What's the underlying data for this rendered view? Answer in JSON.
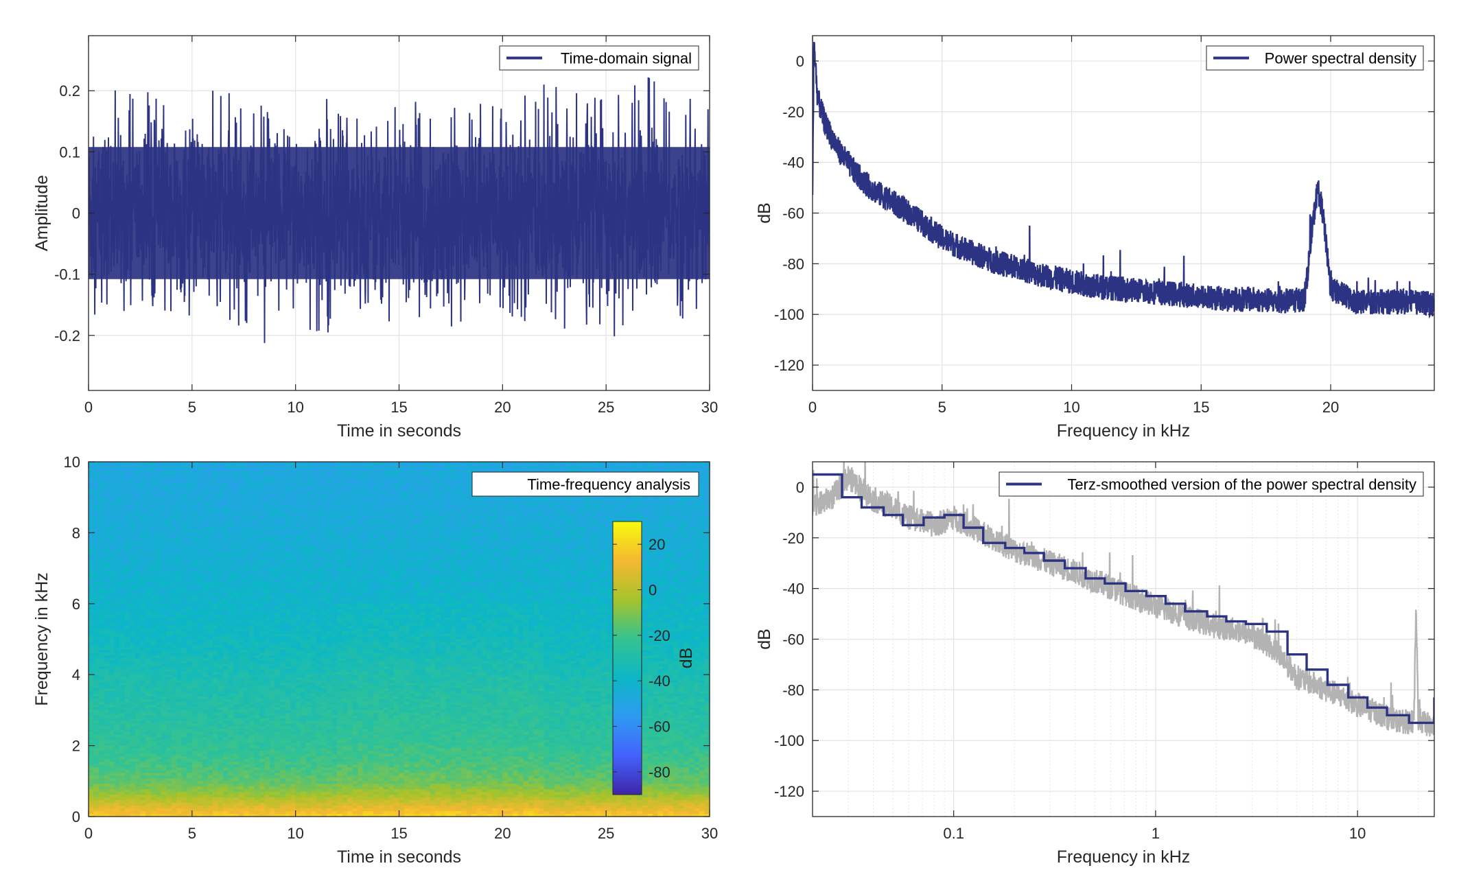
{
  "chart_data": [
    {
      "id": "time-domain",
      "type": "line",
      "xlabel": "Time in seconds",
      "ylabel": "Amplitude",
      "xlim": [
        0,
        30
      ],
      "ylim": [
        -0.29,
        0.29
      ],
      "xticks": [
        0,
        5,
        10,
        15,
        20,
        25,
        30
      ],
      "yticks": [
        -0.2,
        -0.1,
        0,
        0.1,
        0.2
      ],
      "ytick_labels": [
        "-0.2",
        "-0.1",
        "0",
        "0.1",
        "0.2"
      ],
      "grid": true,
      "legend": "top-right",
      "series": [
        {
          "name": "Time-domain signal",
          "color": "#2b3382",
          "band_abs_amplitude": 0.12,
          "x": [
            0,
            2,
            4,
            5,
            6,
            8,
            10,
            12,
            14,
            16,
            18,
            20,
            21.5,
            22,
            24,
            26,
            27.4,
            28,
            30
          ],
          "upper_peaks": [
            0.15,
            0.23,
            0.17,
            0.18,
            0.2,
            0.19,
            0.18,
            0.19,
            0.2,
            0.18,
            0.19,
            0.17,
            0.22,
            0.21,
            0.2,
            0.22,
            0.23,
            0.21,
            0.2
          ],
          "lower_peaks": [
            -0.16,
            -0.2,
            -0.16,
            -0.17,
            -0.18,
            -0.22,
            -0.19,
            -0.2,
            -0.18,
            -0.17,
            -0.19,
            -0.18,
            -0.21,
            -0.2,
            -0.19,
            -0.21,
            -0.23,
            -0.22,
            -0.16
          ]
        }
      ]
    },
    {
      "id": "psd-linear",
      "type": "line",
      "xlabel": "Frequency in kHz",
      "ylabel": "dB",
      "xlim": [
        0,
        24
      ],
      "ylim": [
        -130,
        10
      ],
      "xticks": [
        0,
        5,
        10,
        15,
        20
      ],
      "yticks": [
        0,
        -20,
        -40,
        -60,
        -80,
        -100,
        -120
      ],
      "grid": true,
      "legend": "top-right",
      "series": [
        {
          "name": "Power spectral density",
          "color": "#2b3382",
          "x": [
            0,
            0.05,
            0.2,
            0.5,
            1,
            1.5,
            2,
            2.5,
            3,
            4,
            5,
            6,
            7,
            8,
            9,
            10,
            11,
            12,
            13,
            14,
            15,
            16,
            17,
            18,
            19,
            19.3,
            19.5,
            19.7,
            20,
            21,
            22,
            23,
            24
          ],
          "y": [
            -55,
            8,
            -15,
            -25,
            -35,
            -42,
            -48,
            -52,
            -55,
            -62,
            -70,
            -75,
            -79,
            -82,
            -85,
            -87,
            -89,
            -90,
            -91,
            -92,
            -93,
            -94,
            -94,
            -95,
            -94,
            -65,
            -50,
            -60,
            -90,
            -95,
            -95,
            -95,
            -96
          ],
          "spread": 5
        }
      ]
    },
    {
      "id": "spectrogram",
      "type": "heatmap",
      "xlabel": "Time in seconds",
      "ylabel": "Frequency in kHz",
      "xlim": [
        0,
        30
      ],
      "ylim": [
        0,
        10
      ],
      "xticks": [
        0,
        5,
        10,
        15,
        20,
        25,
        30
      ],
      "yticks": [
        0,
        2,
        4,
        6,
        8,
        10
      ],
      "title_box": "Time-frequency analysis",
      "colorbar": {
        "label": "dB",
        "range": [
          -90,
          30
        ],
        "ticks": [
          20,
          0,
          -20,
          -40,
          -60,
          -80
        ],
        "colormap": [
          "#3e26a8",
          "#4362fd",
          "#2e9bf1",
          "#0cb7c5",
          "#35c391",
          "#a6c32b",
          "#f5b831",
          "#f9fb0e"
        ]
      },
      "profile_freq_khz": [
        0,
        0.25,
        0.6,
        1.0,
        1.5,
        2.0,
        3.0,
        4.0,
        5.0,
        6.0,
        7.0,
        8.0,
        9.0,
        10.0
      ],
      "profile_db": [
        18,
        8,
        -5,
        -15,
        -20,
        -24,
        -28,
        -32,
        -37,
        -40,
        -43,
        -45,
        -47,
        -48
      ]
    },
    {
      "id": "terz-smoothed",
      "type": "line",
      "xlabel": "Frequency in kHz",
      "ylabel": "dB",
      "xscale": "log",
      "xlim": [
        0.02,
        24
      ],
      "ylim": [
        -130,
        10
      ],
      "xticks": [
        0.1,
        1,
        10
      ],
      "xtick_labels": [
        "0.1",
        "1",
        "10"
      ],
      "yticks": [
        0,
        -20,
        -40,
        -60,
        -80,
        -100,
        -120
      ],
      "grid": true,
      "legend": "top-right",
      "series": [
        {
          "name": "Terz-smoothed version of the power spectral density",
          "color": "#2b3382",
          "step_edges": [
            0.02,
            0.028,
            0.035,
            0.045,
            0.056,
            0.071,
            0.09,
            0.112,
            0.14,
            0.18,
            0.224,
            0.28,
            0.355,
            0.45,
            0.56,
            0.71,
            0.9,
            1.12,
            1.4,
            1.8,
            2.24,
            2.8,
            3.55,
            4.5,
            5.6,
            7.1,
            9.0,
            11.2,
            14.0,
            18.0,
            24.0
          ],
          "step_values": [
            5,
            -4,
            -8,
            -11,
            -15,
            -12,
            -11,
            -16,
            -22,
            -24,
            -26,
            -29,
            -32,
            -36,
            -38,
            -41,
            -43,
            -46,
            -49,
            -51,
            -53,
            -54,
            -57,
            -66,
            -72,
            -78,
            -83,
            -87,
            -90,
            -93,
            -83
          ]
        },
        {
          "name": "",
          "color": "#b3b3b3",
          "x": [
            0.02,
            0.025,
            0.03,
            0.04,
            0.05,
            0.06,
            0.08,
            0.1,
            0.15,
            0.2,
            0.3,
            0.5,
            0.7,
            1.0,
            1.5,
            2.0,
            3.0,
            4.0,
            5.0,
            7.0,
            10.0,
            15.0,
            19.0,
            19.5,
            20.0,
            24.0
          ],
          "y": [
            -8,
            -4,
            4,
            -5,
            -8,
            -12,
            -15,
            -12,
            -20,
            -25,
            -30,
            -37,
            -42,
            -47,
            -52,
            -55,
            -58,
            -65,
            -75,
            -80,
            -86,
            -92,
            -93,
            -48,
            -92,
            -95
          ],
          "spread": 5
        }
      ]
    }
  ]
}
